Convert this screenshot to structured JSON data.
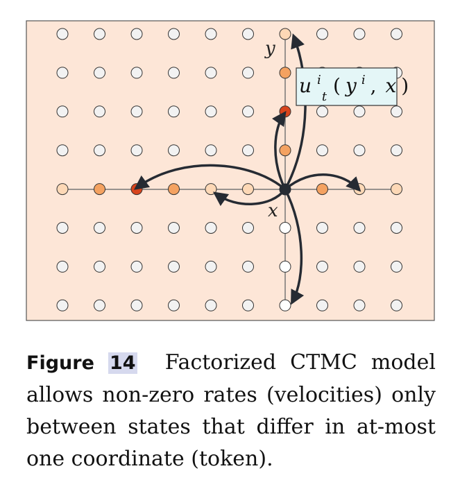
{
  "figure": {
    "label": "Figure",
    "number": "14",
    "caption": "Factorized CTMC model allows non-zero rates (velocities) only between states that differ in at-most one coordinate (token)."
  },
  "diagram": {
    "labels": {
      "x": "x",
      "y": "y",
      "rate_u": "u",
      "rate_sup": "i",
      "rate_sub": "t",
      "rate_paren_open": "(",
      "rate_var_y": "y",
      "rate_var_sup": "i",
      "rate_comma": ",",
      "rate_var_x": "x",
      "rate_paren_close": ")"
    },
    "grid": {
      "cols": 10,
      "rows": 8,
      "current_col": 6,
      "current_row": 4
    },
    "row_colors": [
      "#fdd8b6",
      "#f4a261",
      "#d8441c",
      "#f4a261",
      "#fdd8b6",
      "#ffffff",
      "#ffffff",
      "#ffffff"
    ],
    "col_colors": [
      "#fdd8b6",
      "#f4a261",
      "#d8441c",
      "#f4a261",
      "#fdd8b6",
      "#fdd8b6",
      "#ffffff",
      "#f4a261",
      "#fdd8b6",
      "#fdd8b6"
    ],
    "colors": {
      "panel_bg": "#fde6d7",
      "panel_border": "#555555",
      "axis_line": "#777777",
      "empty_node": "#f2f2f2",
      "current_node": "#262b33",
      "arrow": "#262b33",
      "label_box_bg": "#e4f6f7",
      "label_box_border": "#333333"
    }
  }
}
